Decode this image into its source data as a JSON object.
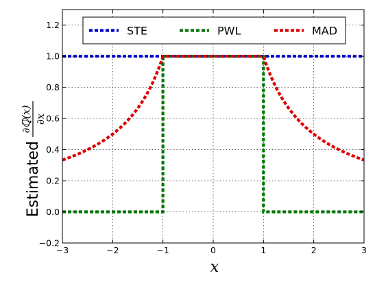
{
  "chart_data": {
    "type": "line",
    "title": "",
    "xlabel": "x",
    "ylabel": {
      "prefix": "Estimated",
      "numerator": "∂ℚ(x)",
      "denominator": "∂x"
    },
    "xlim": [
      -3,
      3
    ],
    "ylim": [
      -0.2,
      1.3
    ],
    "xticks": [
      -3,
      -2,
      -1,
      0,
      1,
      2,
      3
    ],
    "xtick_labels": [
      "−3",
      "−2",
      "−1",
      "0",
      "1",
      "2",
      "3"
    ],
    "yticks": [
      -0.2,
      0.0,
      0.2,
      0.4,
      0.6,
      0.8,
      1.0,
      1.2
    ],
    "ytick_labels": [
      "−0.2",
      "0.0",
      "0.2",
      "0.4",
      "0.6",
      "0.8",
      "1.0",
      "1.2"
    ],
    "grid": true,
    "legend_position": "top-center",
    "series": [
      {
        "name": "STE",
        "color": "#0000cc",
        "style": "dotted",
        "x": [
          -3,
          3
        ],
        "y": [
          1.0,
          1.0
        ]
      },
      {
        "name": "PWL",
        "color": "#007700",
        "style": "dotted",
        "x": [
          -3,
          -1,
          -1,
          1,
          1,
          3
        ],
        "y": [
          0.0,
          0.0,
          1.0,
          1.0,
          0.0,
          0.0
        ]
      },
      {
        "name": "MAD",
        "color": "#dd0000",
        "style": "dotted",
        "x": [
          -3,
          -2.5,
          -2,
          -1.5,
          -1,
          1,
          1.5,
          2,
          2.5,
          3
        ],
        "y": [
          0.333,
          0.4,
          0.5,
          0.667,
          1.0,
          1.0,
          0.667,
          0.5,
          0.4,
          0.333
        ]
      }
    ]
  }
}
